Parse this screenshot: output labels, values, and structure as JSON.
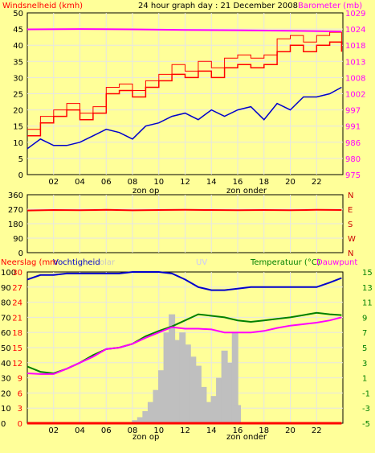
{
  "colors": {
    "background": "#ffff99",
    "grid": "#e6e6e6",
    "wind": "#ff0000",
    "gust": "#ff0000",
    "baro": "#ff00ff",
    "blue": "#0000cc",
    "green": "#008000",
    "magenta": "#ff00ff",
    "rain": "#c0c0c0",
    "solar": "#bfbfbf",
    "uv": "#b8b8ff",
    "rightTicks": "#ff00ff",
    "rightTicks3": "#008000",
    "red": "#cc0000"
  },
  "header": {
    "left_label": "Windsnelheid (kmh)",
    "title": "24 hour graph day : 21 December 2008",
    "right_label": "Barometer (mb)"
  },
  "panel3": {
    "label_rain": "Neerslag (mm",
    "label_hum": "Vochtigheid",
    "label_solar": "olar",
    "label_uv": "UV",
    "label_temp": "Temperatuur (°C)",
    "label_dew": "Dauwpunt"
  },
  "sun_labels": {
    "rise": "zon op",
    "set": "zon onder"
  },
  "chart_data": [
    {
      "type": "line",
      "title": "24 hour graph day : 21 December 2008",
      "ylabel": "Windsnelheid (kmh)",
      "y2label": "Barometer (mb)",
      "xticks": [
        "02",
        "04",
        "06",
        "08",
        "10",
        "12",
        "14",
        "16",
        "18",
        "20",
        "22"
      ],
      "yticks": [
        0,
        5,
        10,
        15,
        20,
        25,
        30,
        35,
        40,
        45,
        50
      ],
      "y2ticks": [
        975,
        980,
        986,
        991,
        997,
        1002,
        1008,
        1013,
        1018,
        1024,
        1029
      ],
      "ylim": [
        0,
        50
      ],
      "y2lim": [
        975,
        1029
      ],
      "xlim": [
        0,
        24
      ],
      "grid": true,
      "series": [
        {
          "name": "Windsnelheid",
          "axis": "left",
          "x": [
            0,
            1,
            2,
            3,
            4,
            5,
            6,
            7,
            8,
            9,
            10,
            11,
            12,
            13,
            14,
            15,
            16,
            17,
            18,
            19,
            20,
            21,
            22,
            23,
            23.9
          ],
          "values": [
            12,
            16,
            18,
            20,
            17,
            19,
            25,
            26,
            24,
            27,
            29,
            31,
            30,
            32,
            30,
            33,
            34,
            33,
            34,
            38,
            40,
            38,
            40,
            41,
            38
          ]
        },
        {
          "name": "Windstoot",
          "axis": "left",
          "x": [
            0,
            1,
            2,
            3,
            4,
            5,
            6,
            7,
            8,
            9,
            10,
            11,
            12,
            13,
            14,
            15,
            16,
            17,
            18,
            19,
            20,
            21,
            22,
            23,
            23.9
          ],
          "values": [
            14,
            18,
            20,
            22,
            19,
            21,
            27,
            28,
            26,
            29,
            31,
            34,
            32,
            35,
            33,
            36,
            37,
            36,
            37,
            42,
            43,
            41,
            43,
            44,
            41
          ]
        },
        {
          "name": "Barometer",
          "axis": "right",
          "x": [
            0,
            4,
            8,
            12,
            16,
            20,
            23.9
          ],
          "values": [
            1023.5,
            1023.6,
            1023.5,
            1023.3,
            1023.2,
            1023.0,
            1022.8
          ]
        },
        {
          "name": "Gemiddelde wind",
          "axis": "left",
          "x": [
            0,
            1,
            2,
            3,
            4,
            5,
            6,
            7,
            8,
            9,
            10,
            11,
            12,
            13,
            14,
            15,
            16,
            17,
            18,
            19,
            20,
            21,
            22,
            23,
            23.9
          ],
          "values": [
            8,
            11,
            9,
            9,
            10,
            12,
            14,
            13,
            11,
            15,
            16,
            18,
            19,
            17,
            20,
            18,
            20,
            21,
            17,
            22,
            20,
            24,
            24,
            25,
            27
          ]
        }
      ]
    },
    {
      "type": "line",
      "ylabel": "",
      "yticks": [
        0,
        90,
        180,
        270,
        360
      ],
      "y2ticks": [
        "N",
        "W",
        "S",
        "E",
        "N"
      ],
      "ylim": [
        0,
        360
      ],
      "xlim": [
        0,
        24
      ],
      "grid": true,
      "series": [
        {
          "name": "Windrichting",
          "x": [
            0,
            2,
            4,
            6,
            8,
            10,
            12,
            14,
            16,
            18,
            20,
            22,
            23.9
          ],
          "values": [
            262,
            265,
            264,
            266,
            263,
            265,
            266,
            265,
            264,
            265,
            264,
            266,
            265
          ]
        }
      ]
    },
    {
      "type": "area",
      "ylabel": "Neerslag (mm",
      "yticks": [
        0,
        3,
        6,
        9,
        12,
        15,
        18,
        21,
        24,
        27,
        30
      ],
      "y_hum_ticks": [
        0,
        10,
        20,
        30,
        40,
        50,
        60,
        70,
        80,
        90,
        100
      ],
      "y2ticks": [
        -5,
        -3,
        -1,
        1,
        3,
        5,
        7,
        9,
        11,
        13,
        15
      ],
      "ylim": [
        0,
        30
      ],
      "y2lim": [
        -5,
        15
      ],
      "xticks": [
        "02",
        "04",
        "06",
        "08",
        "10",
        "12",
        "14",
        "16",
        "18",
        "20",
        "22"
      ],
      "xlim": [
        0,
        24
      ],
      "grid": true,
      "series": [
        {
          "name": "Vochtigheid",
          "axis": "hum",
          "x": [
            0,
            1,
            2,
            3,
            4,
            5,
            6,
            7,
            8,
            9,
            10,
            11,
            12,
            13,
            14,
            15,
            16,
            17,
            18,
            19,
            20,
            21,
            22,
            23,
            23.9
          ],
          "values": [
            95,
            98,
            98,
            99,
            99,
            99,
            99,
            99,
            100,
            100,
            100,
            99,
            95,
            90,
            88,
            88,
            89,
            90,
            90,
            90,
            90,
            90,
            90,
            93,
            96
          ]
        },
        {
          "name": "Temperatuur",
          "axis": "right",
          "x": [
            0,
            1,
            2,
            3,
            4,
            5,
            6,
            7,
            8,
            9,
            10,
            11,
            12,
            13,
            14,
            15,
            16,
            17,
            18,
            19,
            20,
            21,
            22,
            23,
            23.9
          ],
          "values": [
            2.5,
            1.8,
            1.6,
            2.2,
            3.0,
            4.0,
            4.8,
            5.0,
            5.5,
            6.5,
            7.2,
            7.8,
            8.6,
            9.4,
            9.2,
            9.0,
            8.6,
            8.4,
            8.6,
            8.8,
            9.0,
            9.3,
            9.6,
            9.4,
            9.3
          ]
        },
        {
          "name": "Dauwpunt",
          "axis": "right",
          "x": [
            0,
            1,
            2,
            3,
            4,
            5,
            6,
            7,
            8,
            9,
            10,
            11,
            12,
            13,
            14,
            15,
            16,
            17,
            18,
            19,
            20,
            21,
            22,
            23,
            23.9
          ],
          "values": [
            1.6,
            1.5,
            1.5,
            2.2,
            3.0,
            3.8,
            4.8,
            5.0,
            5.5,
            6.3,
            7.0,
            7.7,
            7.5,
            7.5,
            7.4,
            7.0,
            7.0,
            7.0,
            7.2,
            7.6,
            7.9,
            8.1,
            8.3,
            8.6,
            9.0
          ]
        },
        {
          "name": "Solar",
          "axis": "hum",
          "x": [
            8.2,
            8.6,
            9.0,
            9.4,
            9.8,
            10.2,
            10.6,
            11.0,
            11.4,
            11.8,
            12.2,
            12.6,
            13.0,
            13.4,
            13.8,
            14.2,
            14.6,
            15.0,
            15.4,
            15.8,
            16.0
          ],
          "values": [
            2,
            4,
            8,
            14,
            22,
            35,
            60,
            72,
            55,
            60,
            52,
            44,
            38,
            24,
            14,
            18,
            30,
            48,
            40,
            60,
            12
          ]
        },
        {
          "name": "Neerslag",
          "axis": "left",
          "x": [
            0,
            23.9
          ],
          "values": [
            0,
            0
          ]
        }
      ]
    }
  ]
}
